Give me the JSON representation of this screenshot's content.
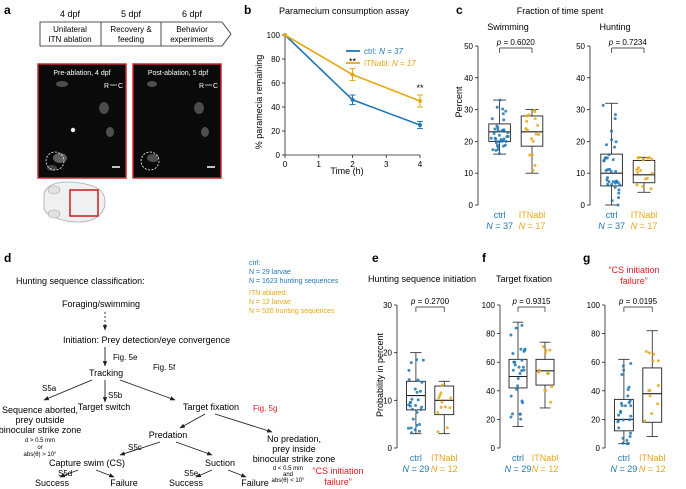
{
  "panels": {
    "a": "a",
    "b": "b",
    "c": "c",
    "d": "d",
    "e": "e",
    "f": "f",
    "g": "g"
  },
  "colors": {
    "ctrl": "#1f77b4",
    "itn": "#e6a817",
    "red": "#e11b22",
    "dark": "#231f20"
  },
  "panel_a": {
    "timeline": [
      {
        "day": "4 dpf",
        "line1": "Unilateral",
        "line2": "ITN ablation"
      },
      {
        "day": "5 dpf",
        "line1": "Recovery &",
        "line2": "feeding"
      },
      {
        "day": "6 dpf",
        "line1": "Behavior",
        "line2": "experiments"
      }
    ],
    "images": [
      {
        "label": "Pre-ablation, 4 dpf",
        "orient_r": "R",
        "orient_c": "C"
      },
      {
        "label": "Post-ablation, 5 dpf",
        "orient_r": "R",
        "orient_c": "C"
      }
    ]
  },
  "panel_d": {
    "title": "Hunting sequence classification:",
    "legend": {
      "ctrl_head": "ctrl:",
      "ctrl_n1": "N = 29 larvae",
      "ctrl_n2": "N = 1623 hunting sequences",
      "itn_head": "ITN ablated:",
      "itn_n1": "N = 12 larvae",
      "itn_n2": "N = 526 hunting sequences"
    },
    "nodes": {
      "foraging": "Foraging/swimming",
      "initiation": "Initiation: Prey detection/eye convergence",
      "fig5e": "Fig. 5e",
      "tracking": "Tracking",
      "fig5f": "Fig. 5f",
      "s5a": "S5a",
      "s5b": "S5b",
      "aborted1": "Sequence aborted,",
      "aborted2": "prey outside",
      "aborted3": "binocular strike zone",
      "cond_a1": "d > 0.5 mm",
      "cond_a2": "or",
      "cond_a3": "abs(θ) > 10°",
      "target_switch": "Target switch",
      "target_fixation": "Target fixation",
      "fig5g": "Fig. 5g",
      "predation": "Predation",
      "nopred1": "No predation,",
      "nopred2": "prey inside",
      "nopred3": "binocular strike zone",
      "cond_b1": "d < 0.5 mm",
      "cond_b2": "and",
      "cond_b3": "abs(θ) < 10°",
      "failure_red1": "“CS initiation",
      "failure_red2": "failure”",
      "s5c": "S5c",
      "capture": "Capture swim (CS)",
      "suction": "Suction",
      "s5d": "S5d",
      "s5e": "S5e",
      "success1": "Success",
      "failure1": "Failure",
      "success2": "Success",
      "failure2": "Failure"
    }
  },
  "chart_data": [
    {
      "id": "b",
      "type": "line",
      "title": "Paramecium consumption assay",
      "xlabel": "Time (h)",
      "ylabel": "% paramecia remaining",
      "xlim": [
        0,
        4
      ],
      "ylim": [
        0,
        100
      ],
      "xticks": [
        0,
        1,
        2,
        3,
        4
      ],
      "yticks": [
        0,
        20,
        40,
        60,
        80,
        100
      ],
      "legend": [
        {
          "name": "ctrl",
          "n": "N = 37"
        },
        {
          "name": "ITNabl",
          "n": "N = 17"
        }
      ],
      "series": [
        {
          "name": "ctrl",
          "x": [
            0,
            2,
            4
          ],
          "y": [
            100,
            46,
            25
          ],
          "err": [
            0,
            4,
            3
          ]
        },
        {
          "name": "ITNabl",
          "x": [
            0,
            2,
            4
          ],
          "y": [
            100,
            67,
            45
          ],
          "err": [
            0,
            5,
            5
          ]
        }
      ],
      "annotations": [
        "**",
        "**"
      ]
    },
    {
      "id": "c",
      "type": "box",
      "title": "Fraction of time spent",
      "ylabel": "Percent",
      "subplots": [
        {
          "title": "Swimming",
          "ylim": [
            0,
            50
          ],
          "yticks": [
            0,
            10,
            20,
            30,
            40,
            50
          ],
          "p": "p = 0.6020",
          "groups": [
            {
              "name": "ctrl",
              "n": "N = 37",
              "q1": 20,
              "median": 23,
              "q3": 25.5,
              "whisk_lo": 16,
              "whisk_hi": 33
            },
            {
              "name": "ITNabl",
              "n": "N = 17",
              "q1": 18.5,
              "median": 23,
              "q3": 28,
              "whisk_lo": 10,
              "whisk_hi": 30
            }
          ]
        },
        {
          "title": "Hunting",
          "ylim": [
            0,
            50
          ],
          "yticks": [
            0,
            10,
            20,
            30,
            40,
            50
          ],
          "p": "p = 0.7234",
          "groups": [
            {
              "name": "ctrl",
              "n": "N = 37",
              "q1": 6,
              "median": 10,
              "q3": 16,
              "whisk_lo": 0,
              "whisk_hi": 32
            },
            {
              "name": "ITNabl",
              "n": "N = 17",
              "q1": 7,
              "median": 9.5,
              "q3": 14,
              "whisk_lo": 4,
              "whisk_hi": 15
            }
          ]
        }
      ]
    },
    {
      "id": "e",
      "type": "box",
      "title": "Hunting sequence initiation",
      "ylabel": "Probability in percent",
      "ylim": [
        0,
        30
      ],
      "yticks": [
        0,
        10,
        20,
        30
      ],
      "p": "p = 0.2700",
      "groups": [
        {
          "name": "ctrl",
          "n": "N = 29",
          "q1": 8,
          "median": 11,
          "q3": 14,
          "whisk_lo": 3,
          "whisk_hi": 20
        },
        {
          "name": "ITNabl",
          "n": "N = 12",
          "q1": 7,
          "median": 10,
          "q3": 13,
          "whisk_lo": 3,
          "whisk_hi": 14
        }
      ]
    },
    {
      "id": "f",
      "type": "box",
      "title": "Target fixation",
      "ylim": [
        0,
        100
      ],
      "yticks": [
        0,
        20,
        40,
        60,
        80,
        100
      ],
      "p": "p = 0.9315",
      "groups": [
        {
          "name": "ctrl",
          "n": "N = 29",
          "q1": 42,
          "median": 50,
          "q3": 62,
          "whisk_lo": 15,
          "whisk_hi": 88
        },
        {
          "name": "ITNabl",
          "n": "N = 12",
          "q1": 44,
          "median": 54,
          "q3": 62,
          "whisk_lo": 28,
          "whisk_hi": 74
        }
      ]
    },
    {
      "id": "g",
      "type": "box",
      "title": "“CS initiation",
      "title2": "failure”",
      "ylim": [
        0,
        100
      ],
      "yticks": [
        0,
        20,
        40,
        60,
        80,
        100
      ],
      "p": "p = 0.0195",
      "groups": [
        {
          "name": "ctrl",
          "n": "N = 29",
          "q1": 12,
          "median": 20,
          "q3": 34,
          "whisk_lo": 3,
          "whisk_hi": 62
        },
        {
          "name": "ITNabl",
          "n": "N = 12",
          "q1": 18,
          "median": 38,
          "q3": 56,
          "whisk_lo": 8,
          "whisk_hi": 82
        }
      ]
    }
  ]
}
